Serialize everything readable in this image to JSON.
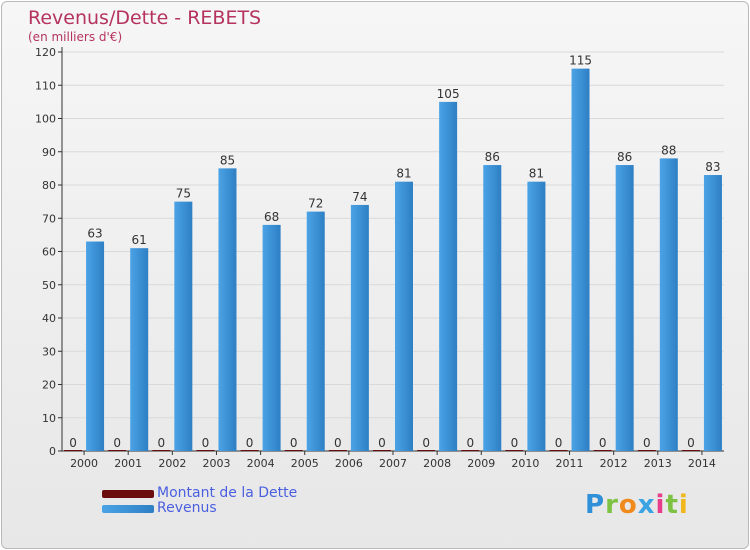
{
  "title": "Revenus/Dette - REBETS",
  "subtitle": "(en milliers d'€)",
  "logo": {
    "text": "Proxiti",
    "letters": [
      "P",
      "r",
      "o",
      "x",
      "i",
      "t",
      "i"
    ],
    "colors": [
      "#2f8fd8",
      "#7dc242",
      "#f08a1c",
      "#3aa3e3",
      "#e83d8a",
      "#7dc242",
      "#f0b81c"
    ]
  },
  "colors": {
    "dette": "#6b0d0d",
    "revenus": "#4ba3e6",
    "revenus_dark": "#2e7fc4",
    "axis": "#333333",
    "grid": "#d9d9d9"
  },
  "chart_data": {
    "type": "bar",
    "categories": [
      "2000",
      "2001",
      "2002",
      "2003",
      "2004",
      "2005",
      "2006",
      "2007",
      "2008",
      "2009",
      "2010",
      "2011",
      "2012",
      "2013",
      "2014"
    ],
    "series": [
      {
        "name": "Montant de la Dette",
        "values": [
          0,
          0,
          0,
          0,
          0,
          0,
          0,
          0,
          0,
          0,
          0,
          0,
          0,
          0,
          0
        ]
      },
      {
        "name": "Revenus",
        "values": [
          63,
          61,
          75,
          85,
          68,
          72,
          74,
          81,
          105,
          86,
          81,
          115,
          86,
          88,
          83
        ]
      }
    ],
    "yticks": [
      0,
      10,
      20,
      30,
      40,
      50,
      60,
      70,
      80,
      90,
      100,
      110,
      120
    ],
    "ylim": [
      0,
      120
    ],
    "grid": true,
    "legend_position": "bottom-left"
  }
}
